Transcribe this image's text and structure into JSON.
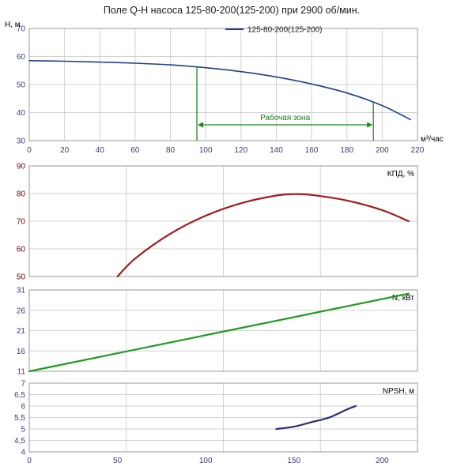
{
  "title": "Поле Q-H насоса 125-80-200(125-200) при 2900 об/мин.",
  "colors": {
    "head": "#1f3e8c",
    "efficiency": "#a01c1c",
    "power": "#1e9b1e",
    "npsh": "#2c2c7a",
    "zone": "#1a8c1a",
    "grid": "#d2d2d2",
    "frame": "#9a9a9a",
    "axis_text": "#3a3a7a"
  },
  "chart_data": [
    {
      "id": "qh",
      "type": "line",
      "title": "Поле Q-H насоса 125-80-200(125-200) при 2900 об/мин.",
      "ylabel": "H, м",
      "xlabel": "м³/час",
      "xlim": [
        0,
        220
      ],
      "ylim": [
        30,
        70
      ],
      "xticks": [
        "0",
        "20",
        "40",
        "60",
        "80",
        "100",
        "120",
        "140",
        "160",
        "180",
        "200",
        "220"
      ],
      "yticks": [
        "30",
        "40",
        "50",
        "60",
        "70"
      ],
      "grid": true,
      "legend_position": "top-right",
      "series": [
        {
          "name": "125-80-200(125-200)",
          "x": [
            0,
            20,
            40,
            60,
            80,
            100,
            120,
            140,
            160,
            180,
            200,
            216
          ],
          "y": [
            58.5,
            58.3,
            58.0,
            57.6,
            57.0,
            56.0,
            54.6,
            52.7,
            50.2,
            47.0,
            42.5,
            37.5
          ]
        }
      ],
      "working_zone": {
        "label": "Рабочая зона",
        "x_start": 95,
        "x_end": 195
      }
    },
    {
      "id": "eff",
      "type": "line",
      "ylabel": "КПД, %",
      "xlim": [
        0,
        220
      ],
      "ylim": [
        50,
        90
      ],
      "yticks": [
        "50",
        "60",
        "70",
        "80",
        "90"
      ],
      "grid": true,
      "series": [
        {
          "x": [
            50,
            60,
            80,
            100,
            120,
            140,
            150,
            160,
            180,
            200,
            215
          ],
          "y": [
            50,
            56.5,
            65.5,
            72.0,
            76.5,
            79.3,
            79.8,
            79.5,
            77.5,
            74.0,
            70.0
          ]
        }
      ]
    },
    {
      "id": "power",
      "type": "line",
      "ylabel": "N, кВт",
      "xlim": [
        0,
        220
      ],
      "ylim": [
        11,
        33
      ],
      "yticks": [
        "11",
        "16",
        "21",
        "26",
        "31"
      ],
      "grid": true,
      "series": [
        {
          "x": [
            0,
            215
          ],
          "y": [
            11,
            32
          ]
        }
      ]
    },
    {
      "id": "npsh",
      "type": "line",
      "ylabel": "NPSH, м",
      "xlabel": "",
      "xlim": [
        0,
        220
      ],
      "ylim": [
        4,
        7
      ],
      "xticks": [
        "0",
        "50",
        "100",
        "150",
        "200"
      ],
      "yticks": [
        "4",
        "4,5",
        "5",
        "5,5",
        "6",
        "6,5",
        "7"
      ],
      "grid": true,
      "series": [
        {
          "x": [
            140,
            150,
            160,
            170,
            180,
            185
          ],
          "y": [
            5.0,
            5.1,
            5.3,
            5.5,
            5.85,
            6.0
          ]
        }
      ]
    }
  ]
}
